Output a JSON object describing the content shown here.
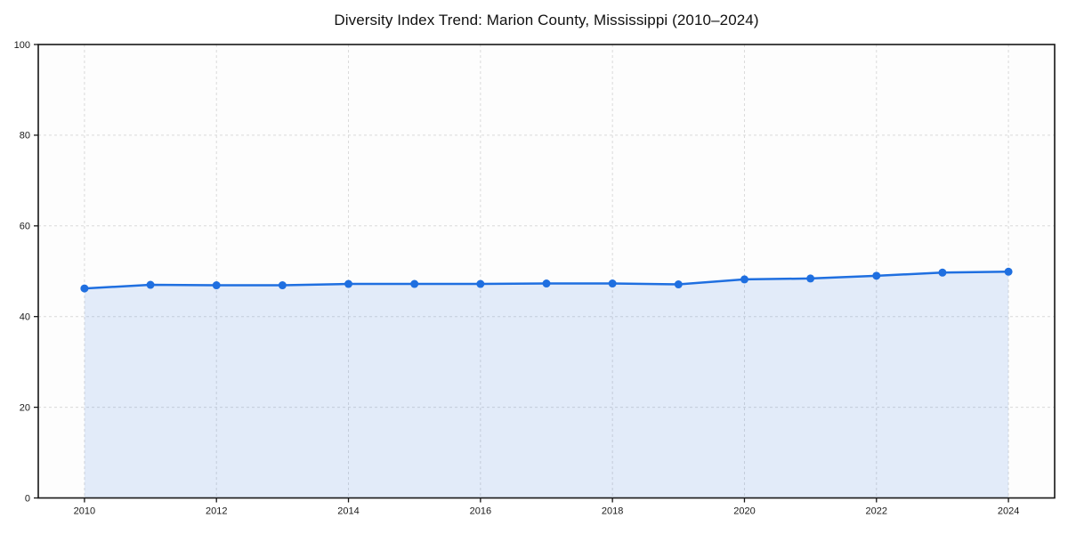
{
  "chart_data": {
    "type": "line",
    "title": "Diversity Index Trend: Marion County, Mississippi (2010–2024)",
    "xlabel": "",
    "ylabel": "",
    "x": [
      2010,
      2011,
      2012,
      2013,
      2014,
      2015,
      2016,
      2017,
      2018,
      2019,
      2020,
      2021,
      2022,
      2023,
      2024
    ],
    "series": [
      {
        "name": "Diversity Index",
        "values": [
          46.2,
          47.0,
          46.9,
          46.9,
          47.2,
          47.2,
          47.2,
          47.3,
          47.3,
          47.1,
          48.2,
          48.4,
          49.0,
          49.7,
          49.9
        ]
      }
    ],
    "x_ticks": [
      2010,
      2012,
      2014,
      2016,
      2018,
      2020,
      2022,
      2024
    ],
    "y_ticks": [
      0,
      20,
      40,
      60,
      80,
      100
    ],
    "xlim": [
      2009.3,
      2024.7
    ],
    "ylim": [
      0,
      100
    ],
    "grid": true,
    "grid_style": "dashed",
    "legend": "none",
    "area_fill": true,
    "colors": {
      "line": "#1f6fe0",
      "marker": "#1f6fe0",
      "area_fill": "rgba(31, 111, 224, 0.12)",
      "grid": "#dadada",
      "axis_border": "#161616",
      "tick_label": "#1a1a1a",
      "plot_background": "#fdfdfd",
      "title": "#111111"
    },
    "marker_radius": 4.5,
    "line_width": 2.5
  }
}
